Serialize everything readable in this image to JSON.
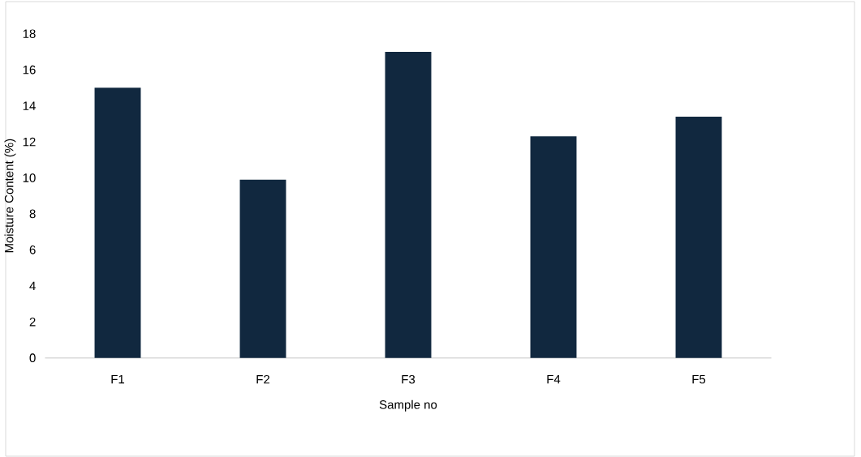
{
  "chart_data": {
    "type": "bar",
    "xlabel": "Sample no",
    "ylabel": "Moisture Content (%)",
    "categories": [
      "F1",
      "F2",
      "F3",
      "F4",
      "F5"
    ],
    "values": [
      15.0,
      9.9,
      17.0,
      12.3,
      13.4
    ],
    "color": "#11283f",
    "ylim": [
      0,
      18
    ],
    "yticks": [
      0,
      2,
      4,
      6,
      8,
      10,
      12,
      14,
      16,
      18
    ],
    "grid": false
  }
}
